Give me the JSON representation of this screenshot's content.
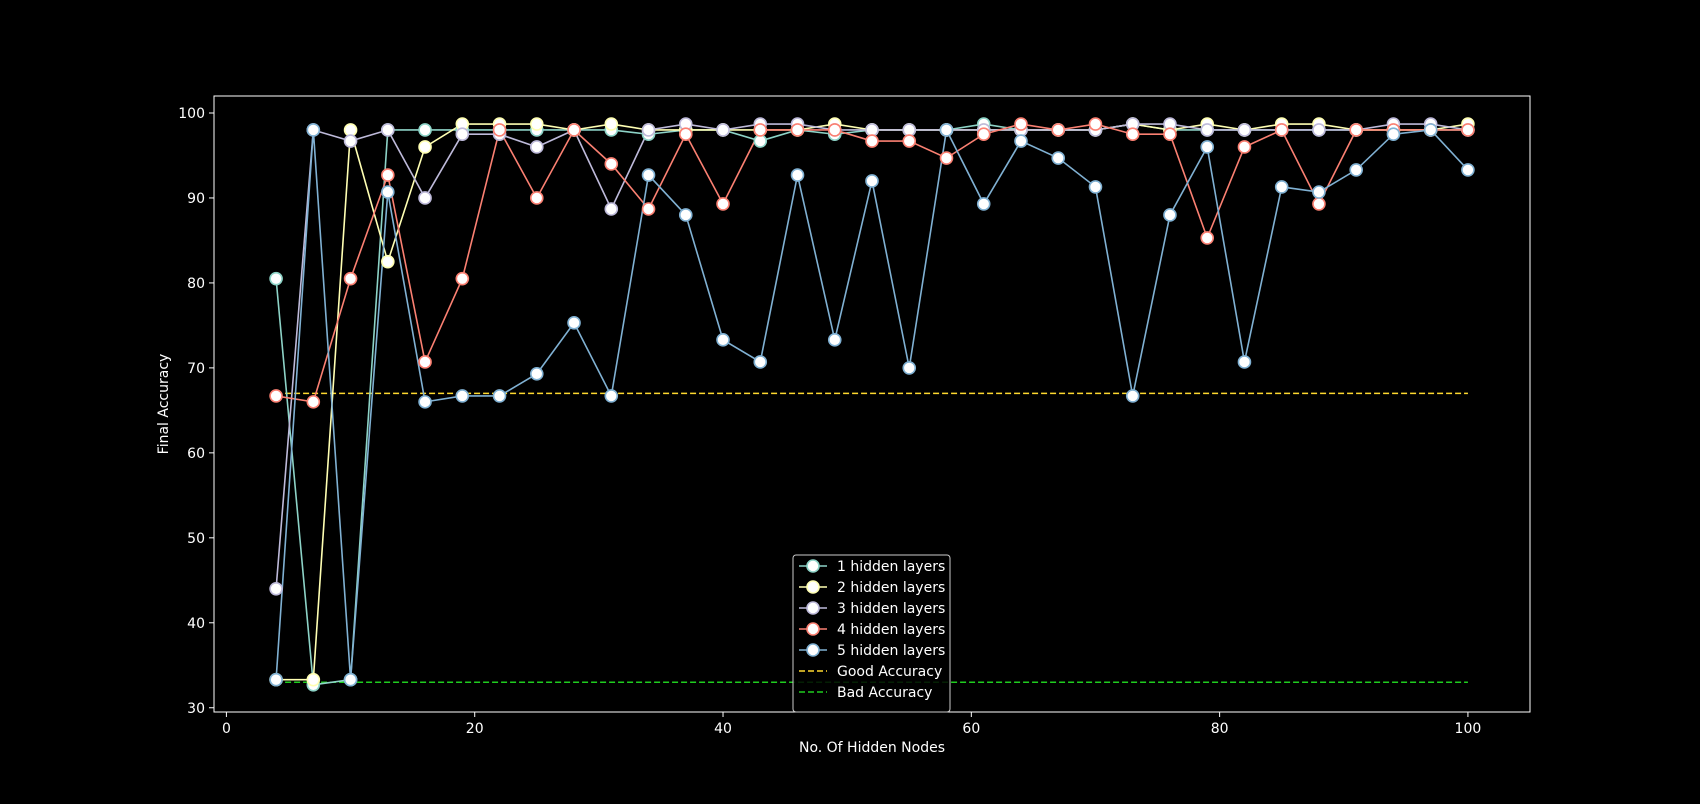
{
  "chart_data": {
    "type": "line",
    "title": "",
    "xlabel": "No. Of Hidden Nodes",
    "ylabel": "Final Accuracy",
    "xlim": [
      -1,
      105
    ],
    "ylim": [
      29.5,
      102
    ],
    "xticks": [
      0,
      20,
      40,
      60,
      80,
      100
    ],
    "yticks": [
      30,
      40,
      50,
      60,
      70,
      80,
      90,
      100
    ],
    "grid": false,
    "legend_position": "lower-center",
    "x": [
      4,
      7,
      10,
      13,
      16,
      19,
      22,
      25,
      28,
      31,
      34,
      37,
      40,
      43,
      46,
      49,
      52,
      55,
      58,
      61,
      64,
      67,
      70,
      73,
      76,
      79,
      82,
      85,
      88,
      91,
      94,
      97,
      100
    ],
    "series": [
      {
        "name": "1 hidden layers",
        "color": "#8dd3c7",
        "values": [
          80.5,
          32.7,
          33.3,
          98,
          98,
          98,
          98,
          98,
          98,
          98,
          97.5,
          98,
          98,
          96.7,
          98,
          97.5,
          98,
          98,
          98,
          98.7,
          98,
          98,
          98,
          98.7,
          98,
          98,
          98,
          98,
          98,
          98,
          98,
          98,
          98
        ]
      },
      {
        "name": "2 hidden layers",
        "color": "#ffffb3",
        "values": [
          33.3,
          33.3,
          98,
          82.5,
          96,
          98.7,
          98.7,
          98.7,
          98,
          98.7,
          98,
          98,
          98,
          98,
          98,
          98.7,
          98,
          98,
          98,
          98,
          98,
          98,
          98,
          98.7,
          98,
          98.7,
          98,
          98.7,
          98.7,
          98,
          98,
          98,
          98.7
        ]
      },
      {
        "name": "3 hidden layers",
        "color": "#bebada",
        "values": [
          44,
          98,
          96.7,
          98,
          90,
          97.5,
          97.5,
          96,
          98,
          88.7,
          98,
          98.7,
          98,
          98.7,
          98.7,
          98,
          98,
          98,
          98,
          98,
          98,
          98,
          98,
          98.7,
          98.7,
          98,
          98,
          98,
          98,
          98,
          98.7,
          98.7,
          98
        ]
      },
      {
        "name": "4 hidden layers",
        "color": "#fb8072",
        "values": [
          66.7,
          66,
          80.5,
          92.7,
          70.7,
          80.5,
          98,
          90,
          98,
          94,
          88.7,
          97.5,
          89.3,
          98,
          98,
          98,
          96.7,
          96.7,
          94.7,
          97.5,
          98.7,
          98,
          98.7,
          97.5,
          97.5,
          85.3,
          96,
          98,
          89.3,
          98,
          98,
          98,
          98
        ]
      },
      {
        "name": "5 hidden layers",
        "color": "#80b1d3",
        "values": [
          33.3,
          98,
          33.3,
          90.7,
          66,
          66.7,
          66.7,
          69.3,
          75.3,
          66.7,
          92.7,
          88,
          73.3,
          70.7,
          92.7,
          73.3,
          92,
          70,
          98,
          89.3,
          96.7,
          94.7,
          91.3,
          66.7,
          88,
          96,
          70.7,
          91.3,
          90.7,
          93.3,
          97.5,
          98,
          93.3
        ]
      }
    ],
    "reference_lines": [
      {
        "name": "Good Accuracy",
        "color": "#ffd92f",
        "value": 67,
        "x_range": [
          4,
          100
        ]
      },
      {
        "name": "Bad Accuracy",
        "color": "#1fcc1f",
        "value": 33,
        "x_range": [
          4,
          100
        ]
      }
    ]
  }
}
